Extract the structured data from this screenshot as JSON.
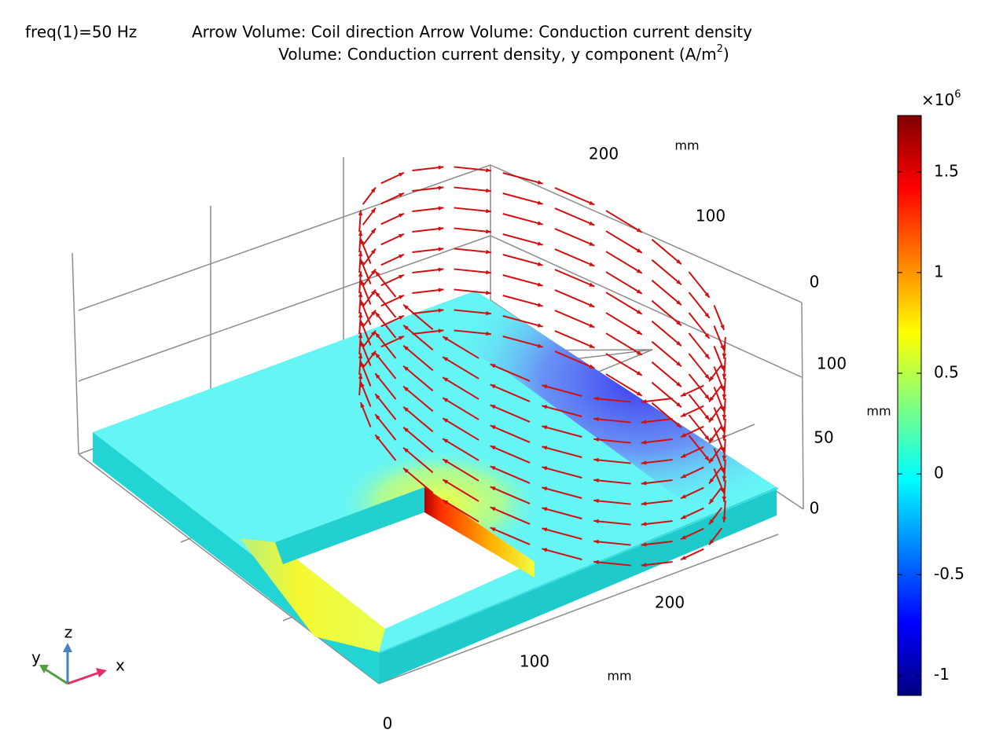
{
  "header": {
    "frequency": "freq(1)=50 Hz",
    "line1": "Arrow Volume: Coil direction  Arrow Volume: Conduction current density",
    "line2": "Volume: Conduction current density, y component (A/m",
    "line2_exponent": "2",
    "line2_end": ")"
  },
  "axes": {
    "x": {
      "ticks": [
        0,
        100,
        200
      ],
      "unit": "mm"
    },
    "y": {
      "ticks": [
        200,
        100,
        0
      ],
      "unit": "mm"
    },
    "z": {
      "ticks": [
        100,
        50,
        0
      ],
      "unit": "mm"
    },
    "triad": [
      "x",
      "y",
      "z"
    ]
  },
  "colorbar": {
    "multiplier": "×10",
    "exponent": "6",
    "range": [
      -1.1,
      1.78
    ],
    "ticks": [
      1.5,
      1,
      0.5,
      0,
      -0.5,
      -1
    ]
  }
}
